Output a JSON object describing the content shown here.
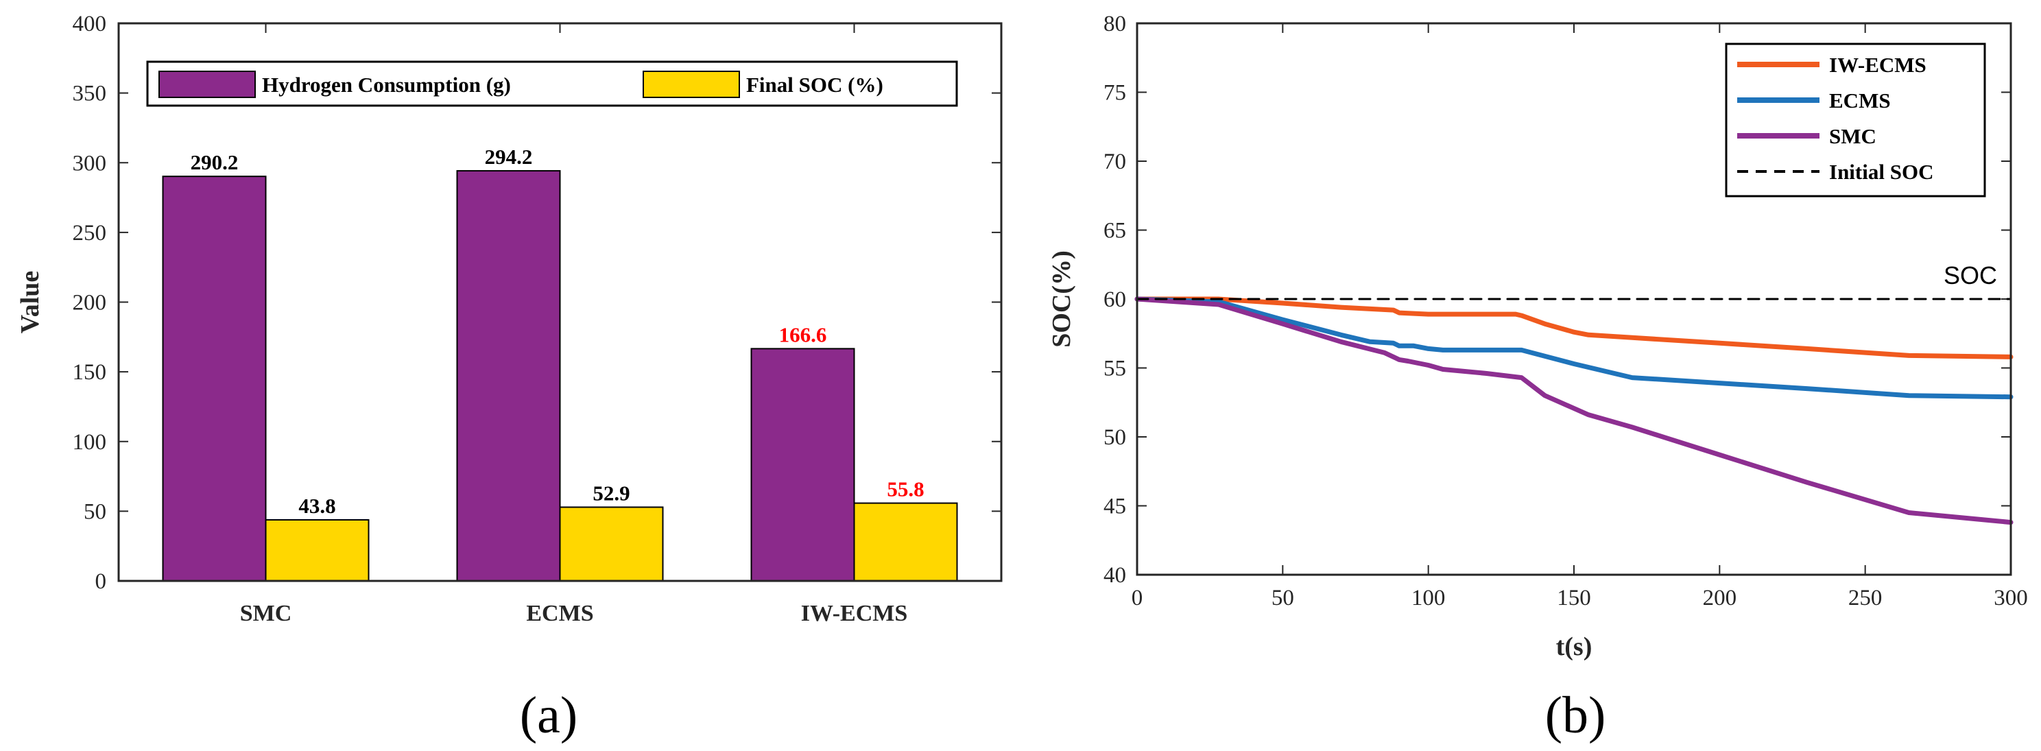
{
  "chart_data": [
    {
      "type": "bar",
      "panel_label": "(a)",
      "ylabel": "Value",
      "xlabel": "",
      "ylim": [
        0,
        400
      ],
      "yticks": [
        0,
        50,
        100,
        150,
        200,
        250,
        300,
        350,
        400
      ],
      "categories": [
        "SMC",
        "ECMS",
        "IW-ECMS"
      ],
      "series": [
        {
          "name": "Hydrogen Consumption (g)",
          "color": "#8b2a8b",
          "values": [
            290.2,
            294.2,
            166.6
          ],
          "labels": [
            "290.2",
            "294.2",
            "166.6"
          ],
          "label_colors": [
            "#000000",
            "#000000",
            "#ff0000"
          ]
        },
        {
          "name": "Final SOC (%)",
          "color": "#ffd700",
          "values": [
            43.8,
            52.9,
            55.8
          ],
          "labels": [
            "43.8",
            "52.9",
            "55.8"
          ],
          "label_colors": [
            "#000000",
            "#000000",
            "#ff0000"
          ]
        }
      ],
      "legend_position": "top",
      "grid": false
    },
    {
      "type": "line",
      "panel_label": "(b)",
      "xlabel": "t(s)",
      "ylabel": "SOC(%)",
      "xlim": [
        0,
        300
      ],
      "ylim": [
        40,
        80
      ],
      "xticks": [
        0,
        50,
        100,
        150,
        200,
        250,
        300
      ],
      "yticks": [
        40,
        45,
        50,
        55,
        60,
        65,
        70,
        75,
        80
      ],
      "annotation": "SOC",
      "legend_position": "top-right",
      "grid": false,
      "series": [
        {
          "name": "IW-ECMS",
          "color": "#f05a1e",
          "dash": false,
          "x": [
            0,
            28,
            50,
            70,
            88,
            90,
            100,
            105,
            130,
            132,
            140,
            150,
            155,
            170,
            200,
            230,
            265,
            300
          ],
          "y": [
            60,
            60,
            59.7,
            59.4,
            59.2,
            59.0,
            58.9,
            58.9,
            58.9,
            58.8,
            58.2,
            57.6,
            57.4,
            57.2,
            56.8,
            56.4,
            55.9,
            55.8
          ]
        },
        {
          "name": "ECMS",
          "color": "#1f74bb",
          "dash": false,
          "x": [
            0,
            28,
            50,
            70,
            80,
            88,
            90,
            95,
            100,
            105,
            120,
            132,
            150,
            170,
            200,
            230,
            265,
            300
          ],
          "y": [
            60,
            59.8,
            58.5,
            57.4,
            56.9,
            56.8,
            56.6,
            56.6,
            56.4,
            56.3,
            56.3,
            56.3,
            55.3,
            54.3,
            53.9,
            53.5,
            53.0,
            52.9
          ]
        },
        {
          "name": "SMC",
          "color": "#8d2f91",
          "dash": false,
          "x": [
            0,
            28,
            50,
            70,
            85,
            90,
            93,
            100,
            105,
            120,
            132,
            140,
            155,
            170,
            200,
            230,
            265,
            300
          ],
          "y": [
            60,
            59.6,
            58.2,
            56.9,
            56.1,
            55.6,
            55.5,
            55.2,
            54.9,
            54.6,
            54.3,
            53.0,
            51.6,
            50.7,
            48.7,
            46.7,
            44.5,
            43.8
          ]
        },
        {
          "name": "Initial SOC",
          "color": "#000000",
          "dash": true,
          "x": [
            0,
            300
          ],
          "y": [
            60,
            60
          ]
        }
      ]
    }
  ]
}
